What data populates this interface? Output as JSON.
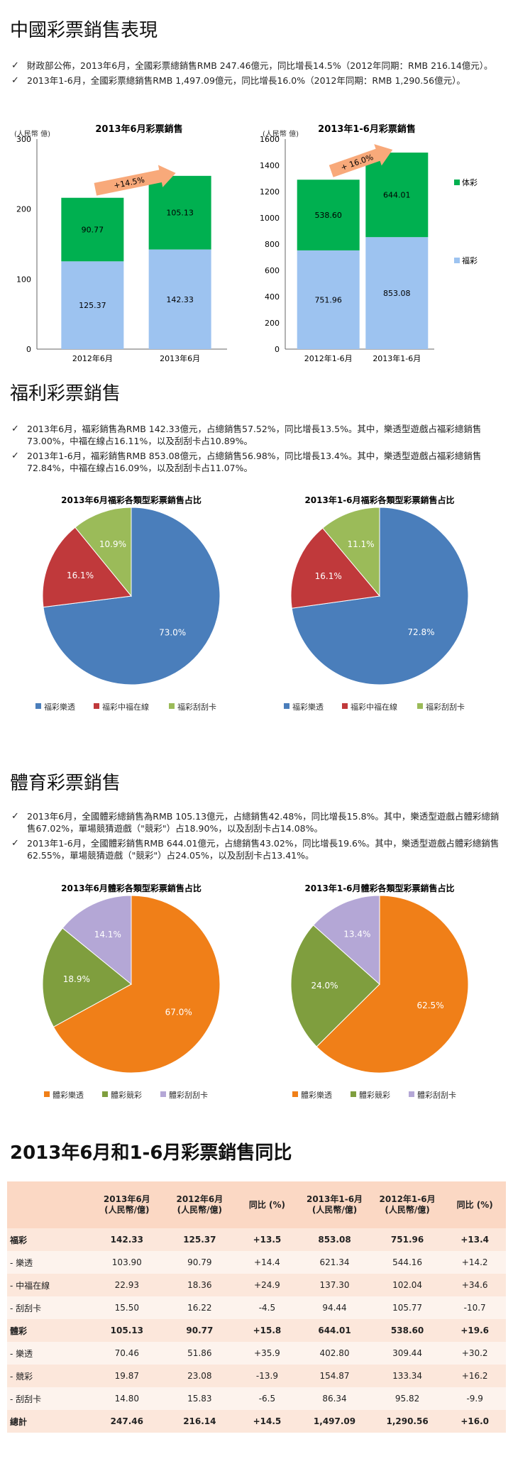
{
  "section1": {
    "title": "中國彩票銷售表現",
    "bullets": [
      "財政部公佈，2013年6月，全國彩票總銷售RMB 247.46億元，同比增長14.5%（2012年同期：RMB 216.14億元）。",
      "2013年1-6月，全國彩票總銷售RMB 1,497.09億元，同比增長16.0%（2012年同期：RMB 1,290.56億元）。"
    ]
  },
  "section2": {
    "title": "福利彩票銷售",
    "bullets": [
      "2013年6月，福彩銷售為RMB 142.33億元，占總銷售57.52%，同比增長13.5%。其中，樂透型遊戲占福彩總銷售73.00%，中福在線占16.11%，以及刮刮卡占10.89%。",
      "2013年1-6月，福彩銷售RMB 853.08億元，占總銷售56.98%，同比增長13.4%。其中，樂透型遊戲占福彩總銷售72.84%，中福在線占16.09%，以及刮刮卡占11.07%。"
    ]
  },
  "section3": {
    "title": "體育彩票銷售",
    "bullets": [
      "2013年6月，全國體彩總銷售為RMB 105.13億元，占總銷售42.48%，同比增長15.8%。其中，樂透型遊戲占體彩總銷售67.02%，單場競猜遊戲（\"競彩\"）占18.90%，以及刮刮卡占14.08%。",
      "2013年1-6月，全國體彩銷售RMB 644.01億元，占總銷售43.02%，同比增長19.6%。其中，樂透型遊戲占體彩總銷售62.55%，單場競猜遊戲（\"競彩\"）占24.05%，以及刮刮卡占13.41%。"
    ]
  },
  "section4": {
    "title": "2013年6月和1-6月彩票銷售同比"
  },
  "colors": {
    "welfare": "#9dc3f0",
    "sports": "#00b050",
    "arrow": "#f8a97a",
    "pie_blue": "#4a7ebb",
    "pie_red": "#c0393b",
    "pie_green": "#9bbb59",
    "pie_orange": "#f07f18",
    "pie_olive": "#7f9e3e",
    "pie_lavender": "#b4a7d6"
  },
  "chart_data": [
    {
      "type": "bar",
      "stacked": true,
      "title": "2013年6月彩票銷售",
      "ylabel": "(人民幣 億)",
      "ylim": [
        0,
        300
      ],
      "yticks": [
        0,
        100,
        200,
        300
      ],
      "categories": [
        "2012年6月",
        "2013年6月"
      ],
      "series": [
        {
          "values": [
            125.37,
            142.33
          ],
          "color": "welfare"
        },
        {
          "values": [
            90.77,
            105.13
          ],
          "color": "sports"
        }
      ],
      "growth_label": "+14.5%"
    },
    {
      "type": "bar",
      "stacked": true,
      "title": "2013年1-6月彩票銷售",
      "ylabel": "(人民幣 億)",
      "ylim": [
        0,
        1600
      ],
      "yticks": [
        0,
        200,
        400,
        600,
        800,
        1000,
        1200,
        1400,
        1600
      ],
      "categories": [
        "2012年1-6月",
        "2013年1-6月"
      ],
      "series": [
        {
          "name": "福彩",
          "values": [
            751.96,
            853.08
          ],
          "color": "welfare"
        },
        {
          "name": "体彩",
          "values": [
            538.6,
            644.01
          ],
          "color": "sports"
        }
      ],
      "growth_label": "+ 16.0%",
      "legend": "right"
    },
    {
      "type": "pie",
      "title": "2013年6月福彩各類型彩票銷售占比",
      "labels": [
        "福彩樂透",
        "福彩中福在線",
        "福彩刮刮卡"
      ],
      "values": [
        73.0,
        16.1,
        10.9
      ],
      "value_labels": [
        "73.0%",
        "16.1%",
        "10.9%"
      ],
      "colors": [
        "pie_blue",
        "pie_red",
        "pie_green"
      ],
      "legend": "bottom"
    },
    {
      "type": "pie",
      "title": "2013年1-6月福彩各類型彩票銷售占比",
      "labels": [
        "福彩樂透",
        "福彩中福在線",
        "福彩刮刮卡"
      ],
      "values": [
        72.8,
        16.1,
        11.1
      ],
      "value_labels": [
        "72.8%",
        "16.1%",
        "11.1%"
      ],
      "colors": [
        "pie_blue",
        "pie_red",
        "pie_green"
      ],
      "legend": "bottom"
    },
    {
      "type": "pie",
      "title": "2013年6月體彩各類型彩票銷售占比",
      "labels": [
        "體彩樂透",
        "體彩競彩",
        "體彩刮刮卡"
      ],
      "values": [
        67.0,
        18.9,
        14.1
      ],
      "value_labels": [
        "67.0%",
        "18.9%",
        "14.1%"
      ],
      "colors": [
        "pie_orange",
        "pie_olive",
        "pie_lavender"
      ],
      "legend": "bottom"
    },
    {
      "type": "pie",
      "title": "2013年1-6月體彩各類型彩票銷售占比",
      "labels": [
        "體彩樂透",
        "體彩競彩",
        "體彩刮刮卡"
      ],
      "values": [
        62.5,
        24.0,
        13.4
      ],
      "value_labels": [
        "62.5%",
        "24.0%",
        "13.4%"
      ],
      "colors": [
        "pie_orange",
        "pie_olive",
        "pie_lavender"
      ],
      "legend": "bottom"
    },
    {
      "type": "table",
      "columns": [
        "",
        "2013年6月\n(人民幣/億)",
        "2012年6月\n(人民幣/億)",
        "同比 (%)",
        "2013年1-6月\n(人民幣/億)",
        "2012年1-6月\n(人民幣/億)",
        "同比 (%)"
      ],
      "rows": [
        {
          "cells": [
            "福彩",
            "142.33",
            "125.37",
            "+13.5",
            "853.08",
            "751.96",
            "+13.4"
          ],
          "bold": true
        },
        {
          "cells": [
            "- 樂透",
            "103.90",
            "90.79",
            "+14.4",
            "621.34",
            "544.16",
            "+14.2"
          ],
          "bold": false
        },
        {
          "cells": [
            "- 中福在線",
            "22.93",
            "18.36",
            "+24.9",
            "137.30",
            "102.04",
            "+34.6"
          ],
          "bold": false
        },
        {
          "cells": [
            "- 刮刮卡",
            "15.50",
            "16.22",
            "-4.5",
            "94.44",
            "105.77",
            "-10.7"
          ],
          "bold": false
        },
        {
          "cells": [
            "體彩",
            "105.13",
            "90.77",
            "+15.8",
            "644.01",
            "538.60",
            "+19.6"
          ],
          "bold": true
        },
        {
          "cells": [
            "- 樂透",
            "70.46",
            "51.86",
            "+35.9",
            "402.80",
            "309.44",
            "+30.2"
          ],
          "bold": false
        },
        {
          "cells": [
            "- 競彩",
            "19.87",
            "23.08",
            "-13.9",
            "154.87",
            "133.34",
            "+16.2"
          ],
          "bold": false
        },
        {
          "cells": [
            "- 刮刮卡",
            "14.80",
            "15.83",
            "-6.5",
            "86.34",
            "95.82",
            "-9.9"
          ],
          "bold": false
        },
        {
          "cells": [
            "總計",
            "247.46",
            "216.14",
            "+14.5",
            "1,497.09",
            "1,290.56",
            "+16.0"
          ],
          "bold": true
        }
      ]
    }
  ]
}
